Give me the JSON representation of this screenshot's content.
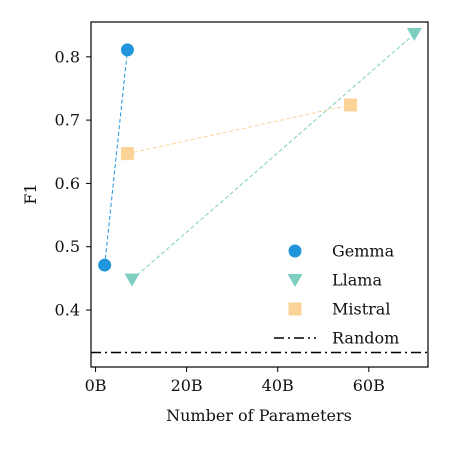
{
  "chart_data": {
    "type": "scatter",
    "xlabel": "Number of Parameters",
    "ylabel": "F1",
    "xlim": [
      -1,
      73
    ],
    "ylim": [
      0.31,
      0.855
    ],
    "x_ticks": [
      {
        "value": 0,
        "label": "0B"
      },
      {
        "value": 20,
        "label": "20B"
      },
      {
        "value": 40,
        "label": "40B"
      },
      {
        "value": 60,
        "label": "60B"
      }
    ],
    "y_ticks": [
      {
        "value": 0.4,
        "label": "0.4"
      },
      {
        "value": 0.5,
        "label": "0.5"
      },
      {
        "value": 0.6,
        "label": "0.6"
      },
      {
        "value": 0.7,
        "label": "0.7"
      },
      {
        "value": 0.8,
        "label": "0.8"
      }
    ],
    "grid": false,
    "legend_position": "bottom-right",
    "series": [
      {
        "name": "Gemma",
        "marker": "circle",
        "color": "#1f96dc",
        "x": [
          2,
          7
        ],
        "y": [
          0.471,
          0.811
        ]
      },
      {
        "name": "Llama",
        "marker": "triangle-down",
        "color": "#7ccfc0",
        "x": [
          8,
          70
        ],
        "y": [
          0.448,
          0.836
        ]
      },
      {
        "name": "Mistral",
        "marker": "square",
        "color": "#fcd397",
        "x": [
          7,
          56
        ],
        "y": [
          0.647,
          0.724
        ]
      }
    ],
    "reference_line": {
      "name": "Random",
      "y": 0.333,
      "style": "dash-dot",
      "color": "#000000"
    }
  }
}
